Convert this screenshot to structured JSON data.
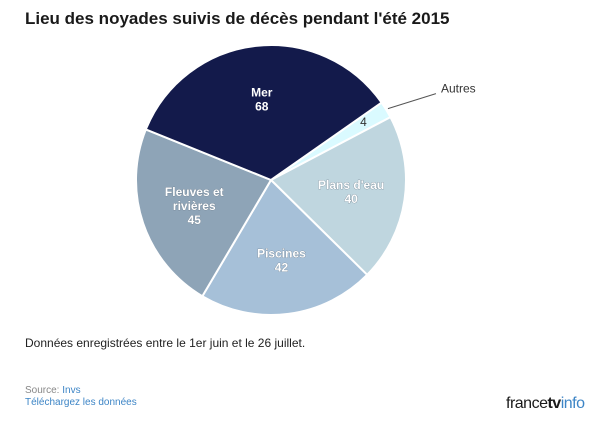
{
  "title": "Lieu des noyades suivis de décès pendant l'été 2015",
  "note": "Données enregistrées entre le 1er juin et le 26 juillet.",
  "source": {
    "label": "Source: ",
    "name": "Invs"
  },
  "download_label": "Téléchargez les données",
  "logo": {
    "part1": "france",
    "part2": "tv",
    "part3": "info"
  },
  "chart_data": {
    "type": "pie",
    "start_direction": "clockwise from top, first slice after Autres",
    "slices": [
      {
        "label": "Autres",
        "value": 4,
        "color": "#dafaff",
        "label_outside": true
      },
      {
        "label": "Plans d'eau",
        "value": 40,
        "color": "#bfd6df"
      },
      {
        "label": "Piscines",
        "value": 42,
        "color": "#a6c0d8"
      },
      {
        "label": "Fleuves et rivières",
        "value": 45,
        "color": "#8ea4b7"
      },
      {
        "label": "Mer",
        "value": 68,
        "color": "#131a4b"
      }
    ]
  }
}
